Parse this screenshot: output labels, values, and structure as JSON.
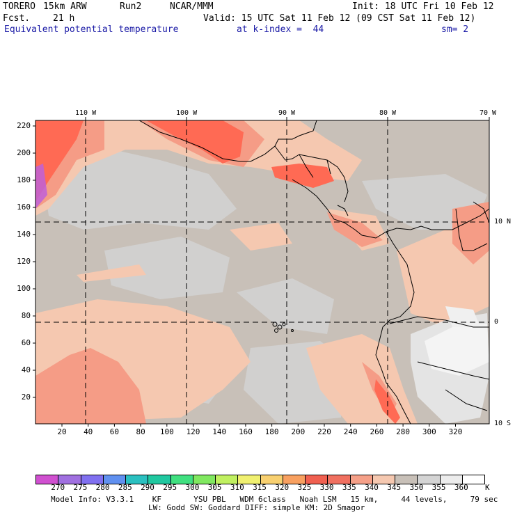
{
  "header": {
    "model": "TORERO",
    "resolution": "15km ARW",
    "run": "Run2",
    "org": "NCAR/MMM",
    "init": "Init: 18 UTC Fri 10 Feb 12",
    "fcst_label": "Fcst.",
    "fcst_value": "21 h",
    "valid": "Valid: 15 UTC Sat 11 Feb 12 (09 CST Sat 11 Feb 12)",
    "field": "Equivalent potential temperature",
    "level": "at k-index =  44",
    "smooth": "sm= 2"
  },
  "map": {
    "lon_labels": [
      "110 W",
      "100 W",
      "90 W",
      "80 W",
      "70 W"
    ],
    "lat_labels": [
      "10 N",
      "0",
      "10 S"
    ],
    "y_ticks": [
      "220",
      "200",
      "180",
      "160",
      "140",
      "120",
      "100",
      "80",
      "60",
      "40",
      "20"
    ],
    "x_ticks": [
      "20",
      "40",
      "60",
      "80",
      "100",
      "120",
      "140",
      "160",
      "180",
      "200",
      "220",
      "240",
      "260",
      "280",
      "300",
      "320"
    ],
    "colors": {
      "background": "#c8c0b8",
      "cool_patch": "#d2d2d2",
      "warm_330": "#ff7860",
      "warm_335": "#f59c86",
      "warm_340": "#f5c8b0",
      "purple": "#c060d8",
      "cold_355": "#e8e8e8",
      "cold_360": "#f8f8f8",
      "land": "#a8a098"
    }
  },
  "colorbar": {
    "labels": [
      "270",
      "275",
      "280",
      "285",
      "290",
      "295",
      "300",
      "305",
      "310",
      "315",
      "320",
      "325",
      "330",
      "335",
      "340",
      "345",
      "350",
      "355",
      "360"
    ],
    "unit": "K",
    "colors": [
      "#d050d0",
      "#a070e0",
      "#8070f0",
      "#6090f0",
      "#2ac0c0",
      "#20c8a0",
      "#40e080",
      "#80e860",
      "#c0f060",
      "#f0f070",
      "#f8d070",
      "#f8a060",
      "#f06050",
      "#f07060",
      "#f5a088",
      "#f5c8b0",
      "#c8c0b8",
      "#d4d4d4",
      "#ececec",
      "#ffffff"
    ]
  },
  "footer": {
    "line1": "Model Info: V3.3.1    KF       YSU PBL   WDM 6class   Noah LSM   15 km,     44 levels,     79 sec",
    "line2": "LW: Godd SW: Goddard DIFF: simple KM: 2D Smagor"
  }
}
